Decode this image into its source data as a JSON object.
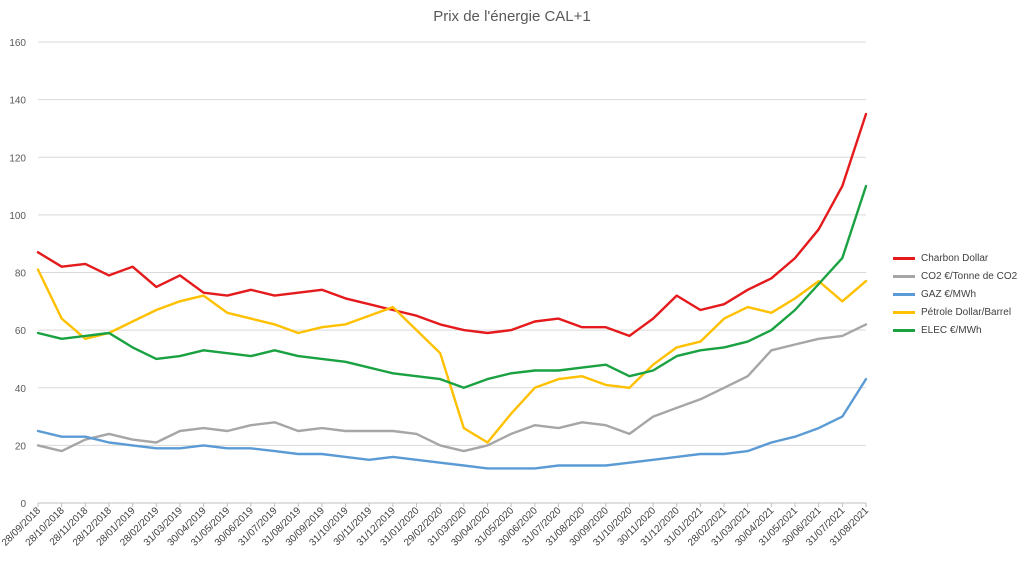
{
  "chart_data": {
    "type": "line",
    "title": "Prix de l'énergie CAL+1",
    "xlabel": "",
    "ylabel": "",
    "ylim": [
      0,
      160
    ],
    "yticks": [
      0,
      20,
      40,
      60,
      80,
      100,
      120,
      140,
      160
    ],
    "grid": true,
    "legend_position": "right",
    "x": [
      "28/09/2018",
      "28/10/2018",
      "28/11/2018",
      "28/12/2018",
      "28/01/2019",
      "28/02/2019",
      "31/03/2019",
      "30/04/2019",
      "31/05/2019",
      "30/06/2019",
      "31/07/2019",
      "31/08/2019",
      "30/09/2019",
      "31/10/2019",
      "30/11/2019",
      "31/12/2019",
      "31/01/2020",
      "29/02/2020",
      "31/03/2020",
      "30/04/2020",
      "31/05/2020",
      "30/06/2020",
      "31/07/2020",
      "31/08/2020",
      "30/09/2020",
      "31/10/2020",
      "30/11/2020",
      "31/12/2020",
      "31/01/2021",
      "28/02/2021",
      "31/03/2021",
      "30/04/2021",
      "31/05/2021",
      "30/06/2021",
      "31/07/2021",
      "31/08/2021"
    ],
    "series": [
      {
        "name": "Charbon Dollar",
        "color": "#e41a1c",
        "values": [
          87,
          82,
          83,
          79,
          82,
          75,
          79,
          73,
          72,
          74,
          72,
          73,
          74,
          71,
          69,
          67,
          65,
          62,
          60,
          59,
          60,
          63,
          64,
          61,
          61,
          58,
          64,
          72,
          67,
          69,
          74,
          78,
          85,
          95,
          110,
          135
        ]
      },
      {
        "name": "CO2 €/Tonne de CO2",
        "color": "#a6a6a6",
        "values": [
          20,
          18,
          22,
          24,
          22,
          21,
          25,
          26,
          25,
          27,
          28,
          25,
          26,
          25,
          25,
          25,
          24,
          20,
          18,
          20,
          24,
          27,
          26,
          28,
          27,
          24,
          30,
          33,
          36,
          40,
          44,
          53,
          55,
          57,
          58,
          62
        ]
      },
      {
        "name": "GAZ €/MWh",
        "color": "#5b9bd5",
        "values": [
          25,
          23,
          23,
          21,
          20,
          19,
          19,
          20,
          19,
          19,
          18,
          17,
          17,
          16,
          15,
          16,
          15,
          14,
          13,
          12,
          12,
          12,
          13,
          13,
          13,
          14,
          15,
          16,
          17,
          17,
          18,
          21,
          23,
          26,
          30,
          43
        ]
      },
      {
        "name": "Pétrole Dollar/Barrel",
        "color": "#ffc000",
        "values": [
          81,
          64,
          57,
          59,
          63,
          67,
          70,
          72,
          66,
          64,
          62,
          59,
          61,
          62,
          65,
          68,
          60,
          52,
          26,
          21,
          31,
          40,
          43,
          44,
          41,
          40,
          48,
          54,
          56,
          64,
          68,
          66,
          71,
          77,
          70,
          77
        ]
      },
      {
        "name": "ELEC €/MWh",
        "color": "#1aa142",
        "values": [
          59,
          57,
          58,
          59,
          54,
          50,
          51,
          53,
          52,
          51,
          53,
          51,
          50,
          49,
          47,
          45,
          44,
          43,
          40,
          43,
          45,
          46,
          46,
          47,
          48,
          44,
          46,
          51,
          53,
          54,
          56,
          60,
          67,
          76,
          85,
          110
        ]
      }
    ]
  }
}
